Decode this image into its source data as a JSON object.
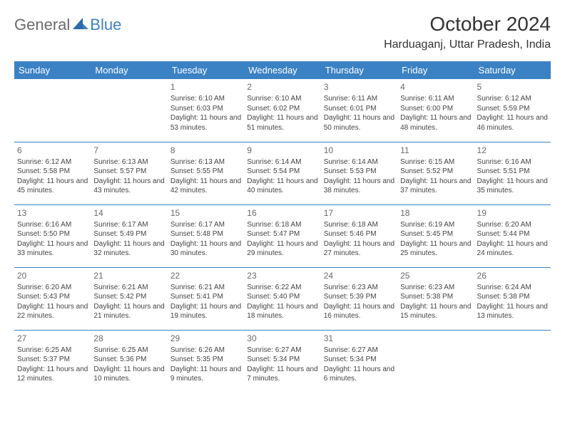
{
  "brand": {
    "part1": "General",
    "part2": "Blue"
  },
  "title": "October 2024",
  "location": "Harduaganj, Uttar Pradesh, India",
  "colors": {
    "header_bg": "#3b82c4",
    "header_text": "#ffffff",
    "text": "#444444",
    "daynum": "#6b6b6b",
    "rule": "#3b82c4"
  },
  "weekdays": [
    "Sunday",
    "Monday",
    "Tuesday",
    "Wednesday",
    "Thursday",
    "Friday",
    "Saturday"
  ],
  "weeks": [
    [
      null,
      null,
      {
        "n": "1",
        "sunrise": "Sunrise: 6:10 AM",
        "sunset": "Sunset: 6:03 PM",
        "day": "Daylight: 11 hours and 53 minutes."
      },
      {
        "n": "2",
        "sunrise": "Sunrise: 6:10 AM",
        "sunset": "Sunset: 6:02 PM",
        "day": "Daylight: 11 hours and 51 minutes."
      },
      {
        "n": "3",
        "sunrise": "Sunrise: 6:11 AM",
        "sunset": "Sunset: 6:01 PM",
        "day": "Daylight: 11 hours and 50 minutes."
      },
      {
        "n": "4",
        "sunrise": "Sunrise: 6:11 AM",
        "sunset": "Sunset: 6:00 PM",
        "day": "Daylight: 11 hours and 48 minutes."
      },
      {
        "n": "5",
        "sunrise": "Sunrise: 6:12 AM",
        "sunset": "Sunset: 5:59 PM",
        "day": "Daylight: 11 hours and 46 minutes."
      }
    ],
    [
      {
        "n": "6",
        "sunrise": "Sunrise: 6:12 AM",
        "sunset": "Sunset: 5:58 PM",
        "day": "Daylight: 11 hours and 45 minutes."
      },
      {
        "n": "7",
        "sunrise": "Sunrise: 6:13 AM",
        "sunset": "Sunset: 5:57 PM",
        "day": "Daylight: 11 hours and 43 minutes."
      },
      {
        "n": "8",
        "sunrise": "Sunrise: 6:13 AM",
        "sunset": "Sunset: 5:55 PM",
        "day": "Daylight: 11 hours and 42 minutes."
      },
      {
        "n": "9",
        "sunrise": "Sunrise: 6:14 AM",
        "sunset": "Sunset: 5:54 PM",
        "day": "Daylight: 11 hours and 40 minutes."
      },
      {
        "n": "10",
        "sunrise": "Sunrise: 6:14 AM",
        "sunset": "Sunset: 5:53 PM",
        "day": "Daylight: 11 hours and 38 minutes."
      },
      {
        "n": "11",
        "sunrise": "Sunrise: 6:15 AM",
        "sunset": "Sunset: 5:52 PM",
        "day": "Daylight: 11 hours and 37 minutes."
      },
      {
        "n": "12",
        "sunrise": "Sunrise: 6:16 AM",
        "sunset": "Sunset: 5:51 PM",
        "day": "Daylight: 11 hours and 35 minutes."
      }
    ],
    [
      {
        "n": "13",
        "sunrise": "Sunrise: 6:16 AM",
        "sunset": "Sunset: 5:50 PM",
        "day": "Daylight: 11 hours and 33 minutes."
      },
      {
        "n": "14",
        "sunrise": "Sunrise: 6:17 AM",
        "sunset": "Sunset: 5:49 PM",
        "day": "Daylight: 11 hours and 32 minutes."
      },
      {
        "n": "15",
        "sunrise": "Sunrise: 6:17 AM",
        "sunset": "Sunset: 5:48 PM",
        "day": "Daylight: 11 hours and 30 minutes."
      },
      {
        "n": "16",
        "sunrise": "Sunrise: 6:18 AM",
        "sunset": "Sunset: 5:47 PM",
        "day": "Daylight: 11 hours and 29 minutes."
      },
      {
        "n": "17",
        "sunrise": "Sunrise: 6:18 AM",
        "sunset": "Sunset: 5:46 PM",
        "day": "Daylight: 11 hours and 27 minutes."
      },
      {
        "n": "18",
        "sunrise": "Sunrise: 6:19 AM",
        "sunset": "Sunset: 5:45 PM",
        "day": "Daylight: 11 hours and 25 minutes."
      },
      {
        "n": "19",
        "sunrise": "Sunrise: 6:20 AM",
        "sunset": "Sunset: 5:44 PM",
        "day": "Daylight: 11 hours and 24 minutes."
      }
    ],
    [
      {
        "n": "20",
        "sunrise": "Sunrise: 6:20 AM",
        "sunset": "Sunset: 5:43 PM",
        "day": "Daylight: 11 hours and 22 minutes."
      },
      {
        "n": "21",
        "sunrise": "Sunrise: 6:21 AM",
        "sunset": "Sunset: 5:42 PM",
        "day": "Daylight: 11 hours and 21 minutes."
      },
      {
        "n": "22",
        "sunrise": "Sunrise: 6:21 AM",
        "sunset": "Sunset: 5:41 PM",
        "day": "Daylight: 11 hours and 19 minutes."
      },
      {
        "n": "23",
        "sunrise": "Sunrise: 6:22 AM",
        "sunset": "Sunset: 5:40 PM",
        "day": "Daylight: 11 hours and 18 minutes."
      },
      {
        "n": "24",
        "sunrise": "Sunrise: 6:23 AM",
        "sunset": "Sunset: 5:39 PM",
        "day": "Daylight: 11 hours and 16 minutes."
      },
      {
        "n": "25",
        "sunrise": "Sunrise: 6:23 AM",
        "sunset": "Sunset: 5:38 PM",
        "day": "Daylight: 11 hours and 15 minutes."
      },
      {
        "n": "26",
        "sunrise": "Sunrise: 6:24 AM",
        "sunset": "Sunset: 5:38 PM",
        "day": "Daylight: 11 hours and 13 minutes."
      }
    ],
    [
      {
        "n": "27",
        "sunrise": "Sunrise: 6:25 AM",
        "sunset": "Sunset: 5:37 PM",
        "day": "Daylight: 11 hours and 12 minutes."
      },
      {
        "n": "28",
        "sunrise": "Sunrise: 6:25 AM",
        "sunset": "Sunset: 5:36 PM",
        "day": "Daylight: 11 hours and 10 minutes."
      },
      {
        "n": "29",
        "sunrise": "Sunrise: 6:26 AM",
        "sunset": "Sunset: 5:35 PM",
        "day": "Daylight: 11 hours and 9 minutes."
      },
      {
        "n": "30",
        "sunrise": "Sunrise: 6:27 AM",
        "sunset": "Sunset: 5:34 PM",
        "day": "Daylight: 11 hours and 7 minutes."
      },
      {
        "n": "31",
        "sunrise": "Sunrise: 6:27 AM",
        "sunset": "Sunset: 5:34 PM",
        "day": "Daylight: 11 hours and 6 minutes."
      },
      null,
      null
    ]
  ]
}
